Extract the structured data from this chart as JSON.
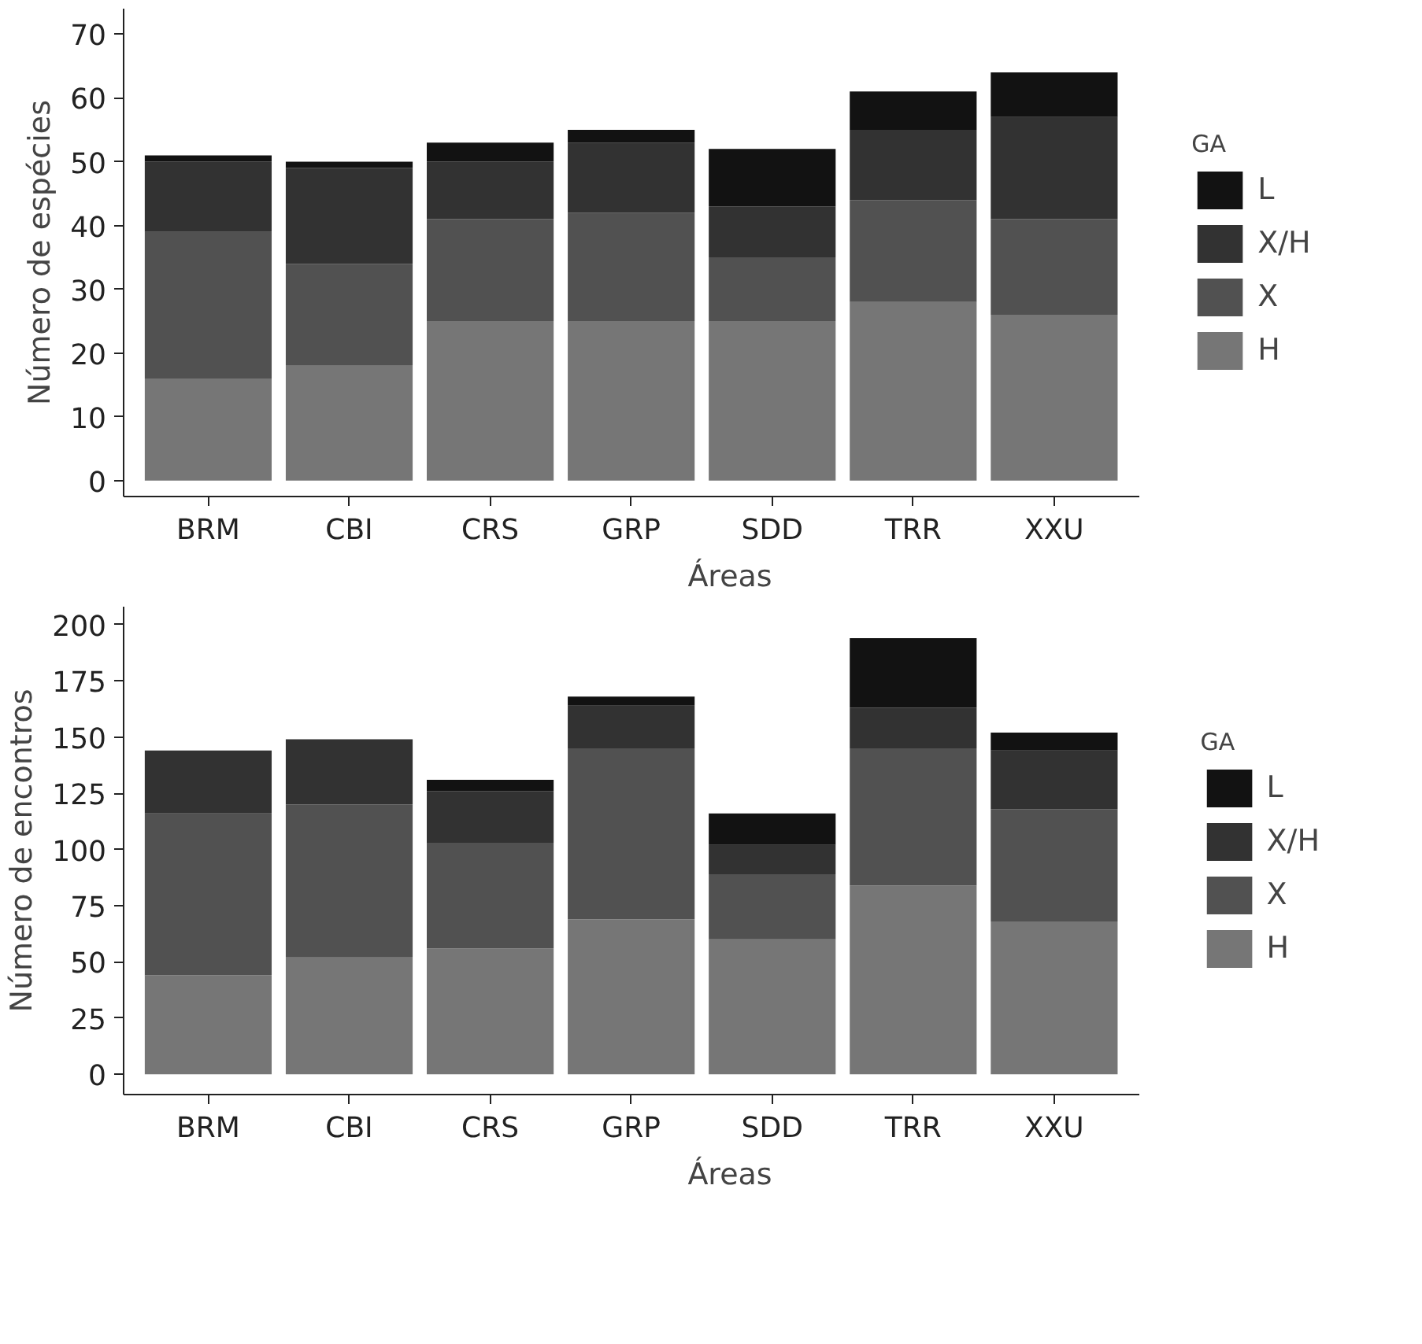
{
  "chart_data": [
    {
      "type": "bar",
      "stacked": true,
      "xlabel": "Áreas",
      "ylabel": "Número de espécies",
      "legend_title": "GA",
      "legend": "right",
      "grid": false,
      "categories": [
        "BRM",
        "CBI",
        "CRS",
        "GRP",
        "SDD",
        "TRR",
        "XXU"
      ],
      "ylim": [
        -2.5,
        74
      ],
      "yticks": [
        0,
        10,
        20,
        30,
        40,
        50,
        60,
        70
      ],
      "series": [
        {
          "name": "H",
          "color": "#767676",
          "values": [
            16,
            18,
            25,
            25,
            25,
            28,
            26
          ]
        },
        {
          "name": "X",
          "color": "#515151",
          "values": [
            23,
            16,
            16,
            17,
            10,
            16,
            15
          ]
        },
        {
          "name": "X/H",
          "color": "#323232",
          "values": [
            11,
            15,
            9,
            11,
            8,
            11,
            16
          ]
        },
        {
          "name": "L",
          "color": "#121212",
          "values": [
            1,
            1,
            3,
            2,
            9,
            6,
            7
          ]
        }
      ]
    },
    {
      "type": "bar",
      "stacked": true,
      "xlabel": "Áreas",
      "ylabel": "Número de encontros",
      "legend_title": "GA",
      "legend": "right",
      "grid": false,
      "categories": [
        "BRM",
        "CBI",
        "CRS",
        "GRP",
        "SDD",
        "TRR",
        "XXU"
      ],
      "ylim": [
        -9,
        208
      ],
      "yticks": [
        0,
        25,
        50,
        75,
        100,
        125,
        150,
        175,
        200
      ],
      "series": [
        {
          "name": "H",
          "color": "#767676",
          "values": [
            44,
            52,
            56,
            69,
            60,
            84,
            68
          ]
        },
        {
          "name": "X",
          "color": "#515151",
          "values": [
            72,
            68,
            47,
            76,
            29,
            61,
            50
          ]
        },
        {
          "name": "X/H",
          "color": "#323232",
          "values": [
            28,
            29,
            23,
            19,
            13,
            18,
            26
          ]
        },
        {
          "name": "L",
          "color": "#121212",
          "values": [
            0,
            0,
            5,
            4,
            14,
            31,
            8
          ]
        }
      ]
    }
  ]
}
